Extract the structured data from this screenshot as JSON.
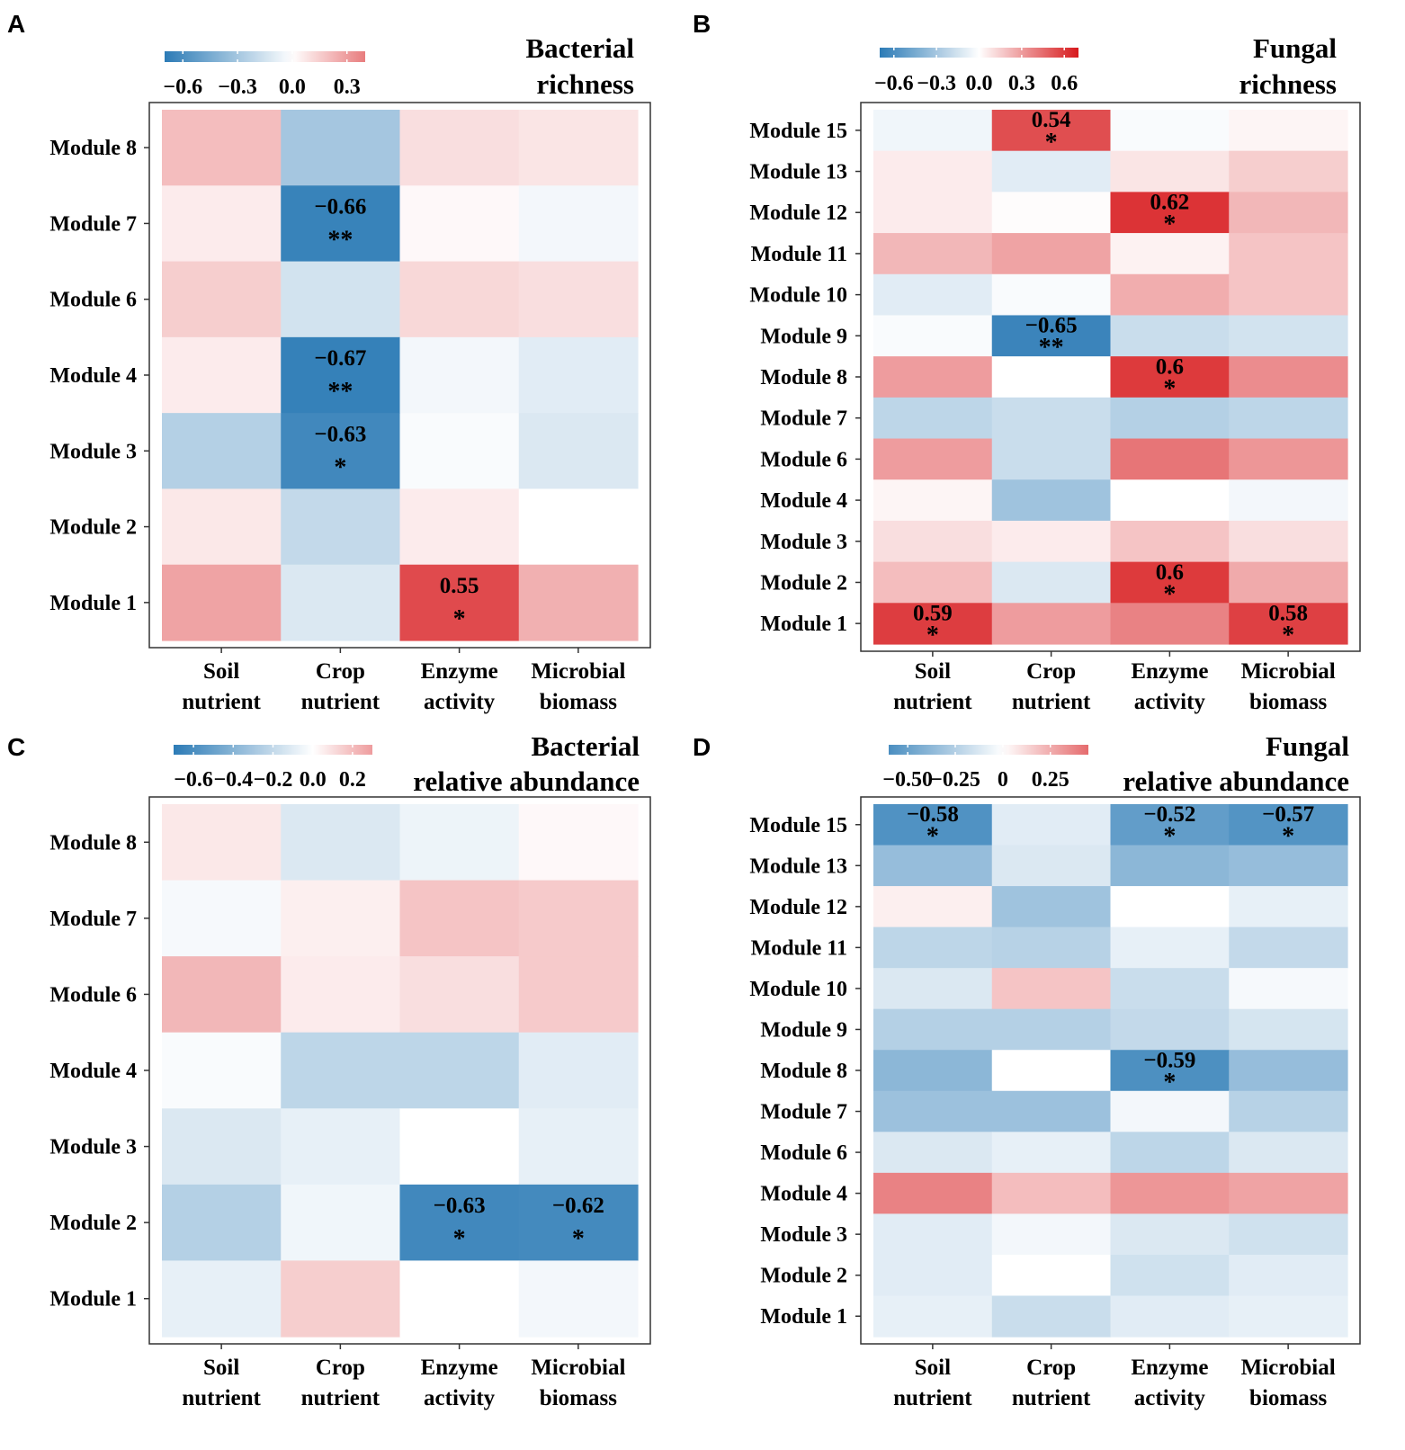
{
  "colors": {
    "negative": "#2c7bb6",
    "zero": "#ffffff",
    "positive": "#d7191c",
    "frame": "#333333",
    "text": "#000000"
  },
  "chart_data": [
    {
      "type": "heatmap",
      "panel_label": "A",
      "title_lines": [
        "Bacterial",
        "richness"
      ],
      "columns": [
        {
          "line1": "Soil",
          "line2": "nutrient"
        },
        {
          "line1": "Crop",
          "line2": "nutrient"
        },
        {
          "line1": "Enzyme",
          "line2": "activity"
        },
        {
          "line1": "Microbial",
          "line2": "biomass"
        }
      ],
      "rows": [
        "Module 8",
        "Module 7",
        "Module 6",
        "Module 4",
        "Module 3",
        "Module 2",
        "Module 1"
      ],
      "values": [
        [
          0.2,
          -0.3,
          0.1,
          0.08
        ],
        [
          0.06,
          -0.66,
          0.02,
          -0.04
        ],
        [
          0.15,
          -0.15,
          0.12,
          0.1
        ],
        [
          0.06,
          -0.67,
          -0.04,
          -0.1
        ],
        [
          -0.25,
          -0.63,
          -0.02,
          -0.12
        ],
        [
          0.07,
          -0.2,
          0.06,
          0.0
        ],
        [
          0.28,
          -0.12,
          0.55,
          0.24
        ]
      ],
      "labels": [
        [
          null,
          null,
          null,
          null
        ],
        [
          null,
          "−0.66",
          null,
          null
        ],
        [
          null,
          null,
          null,
          null
        ],
        [
          null,
          "−0.67",
          null,
          null
        ],
        [
          null,
          "−0.63",
          null,
          null
        ],
        [
          null,
          null,
          null,
          null
        ],
        [
          null,
          null,
          "0.55",
          null
        ]
      ],
      "significance": [
        [
          null,
          null,
          null,
          null
        ],
        [
          null,
          "**",
          null,
          null
        ],
        [
          null,
          null,
          null,
          null
        ],
        [
          null,
          "**",
          null,
          null
        ],
        [
          null,
          "*",
          null,
          null
        ],
        [
          null,
          null,
          null,
          null
        ],
        [
          null,
          null,
          "*",
          null
        ]
      ],
      "colorbar": {
        "range": [
          -0.7,
          0.4
        ],
        "ticks": [
          -0.6,
          -0.3,
          0.0,
          0.3
        ],
        "tick_labels": [
          "−0.6",
          "−0.3",
          "0.0",
          "0.3"
        ]
      }
    },
    {
      "type": "heatmap",
      "panel_label": "B",
      "title_lines": [
        "Fungal",
        "richness"
      ],
      "columns": [
        {
          "line1": "Soil",
          "line2": "nutrient"
        },
        {
          "line1": "Crop",
          "line2": "nutrient"
        },
        {
          "line1": "Enzyme",
          "line2": "activity"
        },
        {
          "line1": "Microbial",
          "line2": "biomass"
        }
      ],
      "rows": [
        "Module 15",
        "Module 13",
        "Module 12",
        "Module 11",
        "Module 10",
        "Module 9",
        "Module 8",
        "Module 7",
        "Module 6",
        "Module 4",
        "Module 3",
        "Module 2",
        "Module 1"
      ],
      "values": [
        [
          -0.05,
          0.54,
          -0.02,
          0.03
        ],
        [
          0.06,
          -0.1,
          0.08,
          0.15
        ],
        [
          0.06,
          0.01,
          0.62,
          0.22
        ],
        [
          0.22,
          0.28,
          0.04,
          0.18
        ],
        [
          -0.1,
          -0.02,
          0.25,
          0.18
        ],
        [
          -0.02,
          -0.65,
          -0.18,
          -0.15
        ],
        [
          0.3,
          0.0,
          0.6,
          0.35
        ],
        [
          -0.22,
          -0.18,
          -0.25,
          -0.22
        ],
        [
          0.3,
          -0.18,
          0.42,
          0.32
        ],
        [
          0.03,
          -0.32,
          0.0,
          -0.04
        ],
        [
          0.1,
          0.06,
          0.18,
          0.1
        ],
        [
          0.2,
          -0.12,
          0.6,
          0.26
        ],
        [
          0.59,
          0.3,
          0.38,
          0.58
        ]
      ],
      "labels": [
        [
          null,
          "0.54",
          null,
          null
        ],
        [
          null,
          null,
          null,
          null
        ],
        [
          null,
          null,
          "0.62",
          null
        ],
        [
          null,
          null,
          null,
          null
        ],
        [
          null,
          null,
          null,
          null
        ],
        [
          null,
          "−0.65",
          null,
          null
        ],
        [
          null,
          null,
          "0.6",
          null
        ],
        [
          null,
          null,
          null,
          null
        ],
        [
          null,
          null,
          null,
          null
        ],
        [
          null,
          null,
          null,
          null
        ],
        [
          null,
          null,
          null,
          null
        ],
        [
          null,
          null,
          "0.6",
          null
        ],
        [
          "0.59",
          null,
          null,
          "0.58"
        ]
      ],
      "significance": [
        [
          null,
          "*",
          null,
          null
        ],
        [
          null,
          null,
          null,
          null
        ],
        [
          null,
          null,
          "*",
          null
        ],
        [
          null,
          null,
          null,
          null
        ],
        [
          null,
          null,
          null,
          null
        ],
        [
          null,
          "**",
          null,
          null
        ],
        [
          null,
          null,
          "*",
          null
        ],
        [
          null,
          null,
          null,
          null
        ],
        [
          null,
          null,
          null,
          null
        ],
        [
          null,
          null,
          null,
          null
        ],
        [
          null,
          null,
          null,
          null
        ],
        [
          null,
          null,
          "*",
          null
        ],
        [
          "*",
          null,
          null,
          "*"
        ]
      ],
      "colorbar": {
        "range": [
          -0.7,
          0.7
        ],
        "ticks": [
          -0.6,
          -0.3,
          0.0,
          0.3,
          0.6
        ],
        "tick_labels": [
          "−0.6",
          "−0.3",
          "0.0",
          "0.3",
          "0.6"
        ]
      }
    },
    {
      "type": "heatmap",
      "panel_label": "C",
      "title_lines": [
        "Bacterial",
        "relative abundance"
      ],
      "columns": [
        {
          "line1": "Soil",
          "line2": "nutrient"
        },
        {
          "line1": "Crop",
          "line2": "nutrient"
        },
        {
          "line1": "Enzyme",
          "line2": "activity"
        },
        {
          "line1": "Microbial",
          "line2": "biomass"
        }
      ],
      "rows": [
        "Module 8",
        "Module 7",
        "Module 6",
        "Module 4",
        "Module 3",
        "Module 2",
        "Module 1"
      ],
      "values": [
        [
          0.07,
          -0.12,
          -0.06,
          0.02
        ],
        [
          -0.03,
          0.05,
          0.18,
          0.16
        ],
        [
          0.22,
          0.06,
          0.1,
          0.16
        ],
        [
          -0.02,
          -0.22,
          -0.22,
          -0.1
        ],
        [
          -0.12,
          -0.08,
          0.0,
          -0.08
        ],
        [
          -0.25,
          -0.05,
          -0.63,
          -0.62
        ],
        [
          -0.08,
          0.15,
          0.0,
          -0.04
        ]
      ],
      "labels": [
        [
          null,
          null,
          null,
          null
        ],
        [
          null,
          null,
          null,
          null
        ],
        [
          null,
          null,
          null,
          null
        ],
        [
          null,
          null,
          null,
          null
        ],
        [
          null,
          null,
          null,
          null
        ],
        [
          null,
          null,
          "−0.63",
          "−0.62"
        ],
        [
          null,
          null,
          null,
          null
        ]
      ],
      "significance": [
        [
          null,
          null,
          null,
          null
        ],
        [
          null,
          null,
          null,
          null
        ],
        [
          null,
          null,
          null,
          null
        ],
        [
          null,
          null,
          null,
          null
        ],
        [
          null,
          null,
          null,
          null
        ],
        [
          null,
          null,
          "*",
          "*"
        ],
        [
          null,
          null,
          null,
          null
        ]
      ],
      "colorbar": {
        "range": [
          -0.7,
          0.3
        ],
        "ticks": [
          -0.6,
          -0.4,
          -0.2,
          0.0,
          0.2
        ],
        "tick_labels": [
          "−0.6",
          "−0.4",
          "−0.2",
          "0.0",
          "0.2"
        ]
      }
    },
    {
      "type": "heatmap",
      "panel_label": "D",
      "title_lines": [
        "Fungal",
        "relative abundance"
      ],
      "columns": [
        {
          "line1": "Soil",
          "line2": "nutrient"
        },
        {
          "line1": "Crop",
          "line2": "nutrient"
        },
        {
          "line1": "Enzyme",
          "line2": "activity"
        },
        {
          "line1": "Microbial",
          "line2": "biomass"
        }
      ],
      "rows": [
        "Module 15",
        "Module 13",
        "Module 12",
        "Module 11",
        "Module 10",
        "Module 9",
        "Module 8",
        "Module 7",
        "Module 6",
        "Module 4",
        "Module 3",
        "Module 2",
        "Module 1"
      ],
      "values": [
        [
          -0.58,
          -0.1,
          -0.52,
          -0.57
        ],
        [
          -0.35,
          -0.12,
          -0.38,
          -0.35
        ],
        [
          0.05,
          -0.32,
          0.0,
          -0.08
        ],
        [
          -0.22,
          -0.24,
          -0.08,
          -0.2
        ],
        [
          -0.12,
          0.18,
          -0.18,
          -0.03
        ],
        [
          -0.25,
          -0.25,
          -0.2,
          -0.14
        ],
        [
          -0.38,
          0.0,
          -0.59,
          -0.35
        ],
        [
          -0.33,
          -0.33,
          -0.04,
          -0.24
        ],
        [
          -0.12,
          -0.08,
          -0.22,
          -0.12
        ],
        [
          0.38,
          0.2,
          0.32,
          0.28
        ],
        [
          -0.1,
          -0.04,
          -0.12,
          -0.16
        ],
        [
          -0.1,
          0.0,
          -0.16,
          -0.1
        ],
        [
          -0.08,
          -0.18,
          -0.1,
          -0.08
        ]
      ],
      "labels": [
        [
          "−0.58",
          null,
          "−0.52",
          "−0.57"
        ],
        [
          null,
          null,
          null,
          null
        ],
        [
          null,
          null,
          null,
          null
        ],
        [
          null,
          null,
          null,
          null
        ],
        [
          null,
          null,
          null,
          null
        ],
        [
          null,
          null,
          null,
          null
        ],
        [
          null,
          null,
          "−0.59",
          null
        ],
        [
          null,
          null,
          null,
          null
        ],
        [
          null,
          null,
          null,
          null
        ],
        [
          null,
          null,
          null,
          null
        ],
        [
          null,
          null,
          null,
          null
        ],
        [
          null,
          null,
          null,
          null
        ],
        [
          null,
          null,
          null,
          null
        ]
      ],
      "significance": [
        [
          "*",
          null,
          "*",
          "*"
        ],
        [
          null,
          null,
          null,
          null
        ],
        [
          null,
          null,
          null,
          null
        ],
        [
          null,
          null,
          null,
          null
        ],
        [
          null,
          null,
          null,
          null
        ],
        [
          null,
          null,
          null,
          null
        ],
        [
          null,
          null,
          "*",
          null
        ],
        [
          null,
          null,
          null,
          null
        ],
        [
          null,
          null,
          null,
          null
        ],
        [
          null,
          null,
          null,
          null
        ],
        [
          null,
          null,
          null,
          null
        ],
        [
          null,
          null,
          null,
          null
        ],
        [
          null,
          null,
          null,
          null
        ]
      ],
      "colorbar": {
        "range": [
          -0.6,
          0.45
        ],
        "ticks": [
          -0.5,
          -0.25,
          0.0,
          0.25
        ],
        "tick_labels": [
          "−0.50",
          "−0.25",
          "0",
          "0.25"
        ]
      }
    }
  ]
}
